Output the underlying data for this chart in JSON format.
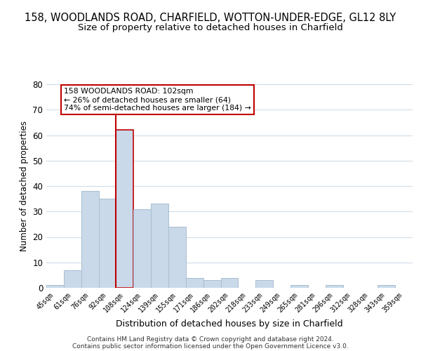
{
  "title": "158, WOODLANDS ROAD, CHARFIELD, WOTTON-UNDER-EDGE, GL12 8LY",
  "subtitle": "Size of property relative to detached houses in Charfield",
  "xlabel": "Distribution of detached houses by size in Charfield",
  "ylabel": "Number of detached properties",
  "bin_labels": [
    "45sqm",
    "61sqm",
    "76sqm",
    "92sqm",
    "108sqm",
    "124sqm",
    "139sqm",
    "155sqm",
    "171sqm",
    "186sqm",
    "202sqm",
    "218sqm",
    "233sqm",
    "249sqm",
    "265sqm",
    "281sqm",
    "296sqm",
    "312sqm",
    "328sqm",
    "343sqm",
    "359sqm"
  ],
  "bar_heights": [
    1,
    7,
    38,
    35,
    62,
    31,
    33,
    24,
    4,
    3,
    4,
    0,
    3,
    0,
    1,
    0,
    1,
    0,
    0,
    1,
    0
  ],
  "bar_color": "#c9d9ea",
  "bar_edge_color": "#a8bece",
  "highlight_bar_edge_color": "#c00000",
  "vline_color": "#c00000",
  "vline_x_index": 4,
  "ylim": [
    0,
    80
  ],
  "yticks": [
    0,
    10,
    20,
    30,
    40,
    50,
    60,
    70,
    80
  ],
  "annotation_text": "158 WOODLANDS ROAD: 102sqm\n← 26% of detached houses are smaller (64)\n74% of semi-detached houses are larger (184) →",
  "annotation_box_color": "#ffffff",
  "annotation_box_edge_color": "#c00000",
  "footer_line1": "Contains HM Land Registry data © Crown copyright and database right 2024.",
  "footer_line2": "Contains public sector information licensed under the Open Government Licence v3.0.",
  "bg_color": "#ffffff",
  "plot_bg_color": "#ffffff",
  "grid_color": "#d0dce8",
  "title_fontsize": 10.5,
  "subtitle_fontsize": 9.5,
  "ylabel_fontsize": 8.5,
  "xlabel_fontsize": 9
}
